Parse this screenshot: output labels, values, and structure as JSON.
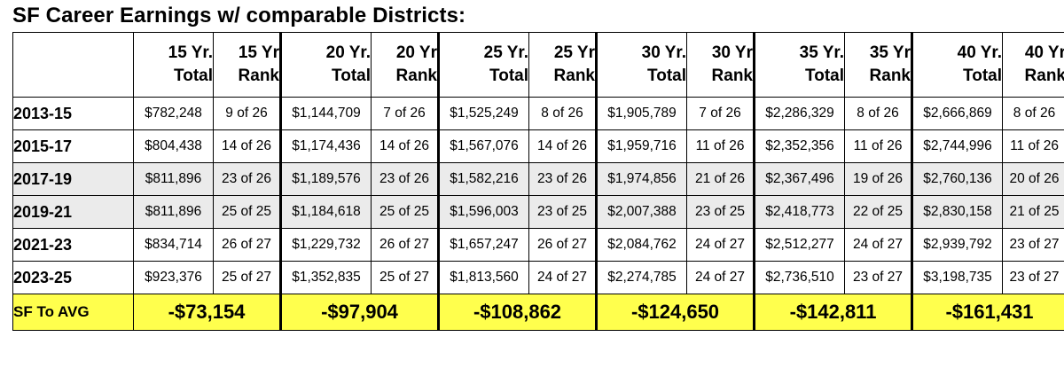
{
  "title": "SF Career Earnings w/ comparable Districts:",
  "headers": [
    {
      "line1": "15 Yr.",
      "line2": "Total"
    },
    {
      "line1": "15 Yr",
      "line2": "Rank"
    },
    {
      "line1": "20 Yr.",
      "line2": "Total"
    },
    {
      "line1": "20 Yr",
      "line2": "Rank"
    },
    {
      "line1": "25 Yr.",
      "line2": "Total"
    },
    {
      "line1": "25 Yr",
      "line2": "Rank"
    },
    {
      "line1": "30 Yr.",
      "line2": "Total"
    },
    {
      "line1": "30 Yr",
      "line2": "Rank"
    },
    {
      "line1": "35 Yr.",
      "line2": "Total"
    },
    {
      "line1": "35 Yr",
      "line2": "Rank"
    },
    {
      "line1": "40 Yr.",
      "line2": "Total"
    },
    {
      "line1": "40 Yr",
      "line2": "Rank"
    }
  ],
  "rows": [
    {
      "year": "2013-15",
      "cells": [
        "$782,248",
        "9 of 26",
        "$1,144,709",
        "7 of 26",
        "$1,525,249",
        "8 of 26",
        "$1,905,789",
        "7 of 26",
        "$2,286,329",
        "8 of 26",
        "$2,666,869",
        "8 of 26"
      ]
    },
    {
      "year": "2015-17",
      "cells": [
        "$804,438",
        "14 of 26",
        "$1,174,436",
        "14 of 26",
        "$1,567,076",
        "14 of 26",
        "$1,959,716",
        "11 of 26",
        "$2,352,356",
        "11 of 26",
        "$2,744,996",
        "11 of 26"
      ]
    },
    {
      "year": "2017-19",
      "cells": [
        "$811,896",
        "23 of 26",
        "$1,189,576",
        "23 of 26",
        "$1,582,216",
        "23 of 26",
        "$1,974,856",
        "21 of 26",
        "$2,367,496",
        "19 of 26",
        "$2,760,136",
        "20 of 26"
      ]
    },
    {
      "year": "2019-21",
      "cells": [
        "$811,896",
        "25 of 25",
        "$1,184,618",
        "25 of 25",
        "$1,596,003",
        "23 of 25",
        "$2,007,388",
        "23 of 25",
        "$2,418,773",
        "22 of 25",
        "$2,830,158",
        "21 of 25"
      ]
    },
    {
      "year": "2021-23",
      "cells": [
        "$834,714",
        "26 of 27",
        "$1,229,732",
        "26 of 27",
        "$1,657,247",
        "26 of 27",
        "$2,084,762",
        "24 of 27",
        "$2,512,277",
        "24 of 27",
        "$2,939,792",
        "23 of 27"
      ]
    },
    {
      "year": "2023-25",
      "cells": [
        "$923,376",
        "25 of 27",
        "$1,352,835",
        "25 of 27",
        "$1,813,560",
        "24 of 27",
        "$2,274,785",
        "24 of 27",
        "$2,736,510",
        "23 of 27",
        "$3,198,735",
        "23 of 27"
      ]
    }
  ],
  "avg": {
    "label": "SF To AVG",
    "values": [
      "-$73,154",
      "-$97,904",
      "-$108,862",
      "-$124,650",
      "-$142,811",
      "-$161,431"
    ]
  },
  "colors": {
    "highlight": "#ffff4d",
    "shade": "#ebebeb"
  }
}
